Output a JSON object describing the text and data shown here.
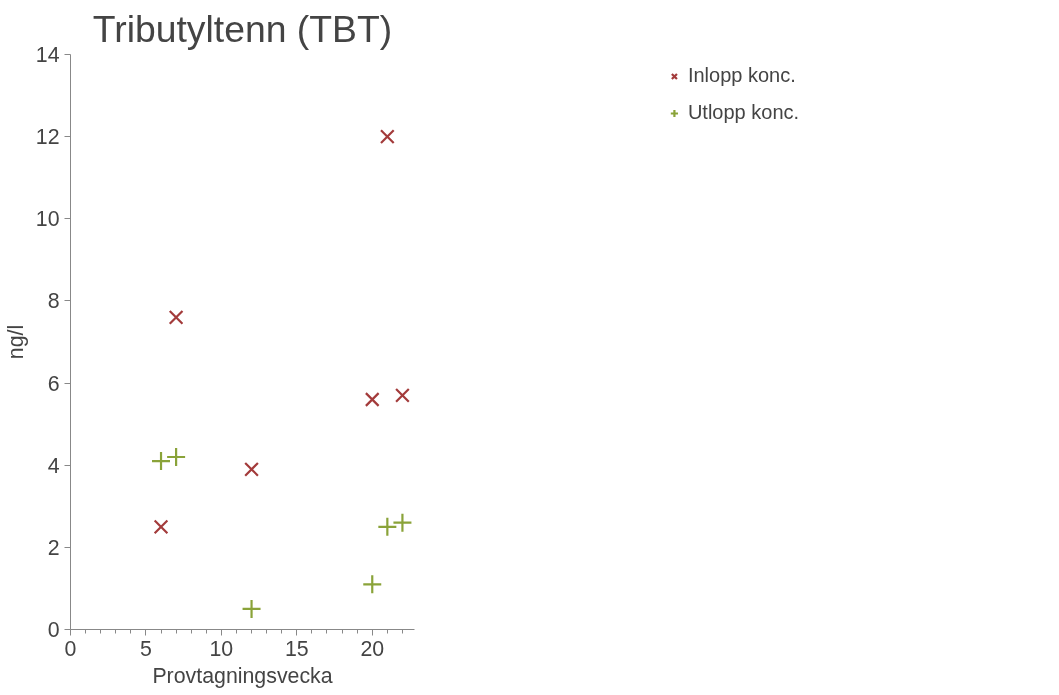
{
  "chart_data": {
    "type": "scatter",
    "title": "Tributyltenn (TBT)",
    "xlabel": "Provtagningsvecka",
    "ylabel": "ng/l",
    "xlim": [
      0,
      22.8
    ],
    "xticks": [
      0,
      5,
      10,
      15,
      20
    ],
    "ylim": [
      0,
      14
    ],
    "yticks": [
      0,
      2,
      4,
      6,
      8,
      10,
      12,
      14
    ],
    "grid": false,
    "legend": "top right",
    "series": [
      {
        "name": "Inlopp konc.",
        "color": "#a33b3b",
        "marker": "x",
        "x": [
          6,
          7,
          12,
          20,
          21,
          22
        ],
        "values": [
          2.5,
          7.6,
          3.9,
          5.6,
          12,
          5.7
        ]
      },
      {
        "name": "Utlopp konc.",
        "color": "#8aa339",
        "marker": "cross",
        "x": [
          6,
          7,
          12,
          20,
          21,
          22
        ],
        "values": [
          4.1,
          4.2,
          0.5,
          1.1,
          2.5,
          2.6
        ]
      }
    ]
  }
}
